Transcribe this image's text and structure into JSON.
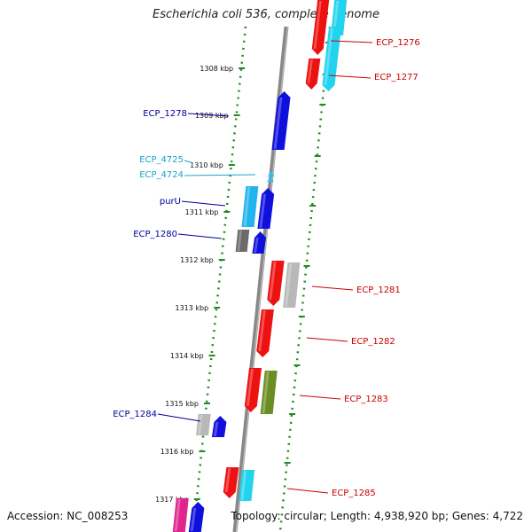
{
  "title": "Escherichia coli 536, complete genome",
  "footer": {
    "accession": "Accession: NC_008253",
    "summary": "Topology: circular; Length: 4,938,920 bp; Genes: 4,722"
  },
  "colors": {
    "red": "#ee1111",
    "cyan": "#22d3ee",
    "blue": "#1010dd",
    "lightblue": "#22b4ee",
    "gray": "#6b6b6b",
    "lightgray": "#b8b8b8",
    "olive": "#6b8e23",
    "magenta": "#e0258f",
    "dotted": "#228b22",
    "label_red": "#cc0000",
    "label_blue": "#000099",
    "label_cyan": "#1aa3c7"
  },
  "ticks": [
    "1308 kbp",
    "1309 kbp",
    "1310 kbp",
    "1311 kbp",
    "1312 kbp",
    "1313 kbp",
    "1314 kbp",
    "1315 kbp",
    "1316 kbp",
    "1317 kbp"
  ],
  "genes": [
    {
      "name": "ECP_1276",
      "side": "right",
      "color": "label_red"
    },
    {
      "name": "ECP_1277",
      "side": "right",
      "color": "label_red"
    },
    {
      "name": "ECP_1278",
      "side": "left",
      "color": "label_blue"
    },
    {
      "name": "ECP_4725",
      "side": "left",
      "color": "label_cyan"
    },
    {
      "name": "ECP_4724",
      "side": "left",
      "color": "label_cyan"
    },
    {
      "name": "purU",
      "side": "left",
      "color": "label_blue"
    },
    {
      "name": "ECP_1280",
      "side": "left",
      "color": "label_blue"
    },
    {
      "name": "ECP_1281",
      "side": "right",
      "color": "label_red"
    },
    {
      "name": "ECP_1282",
      "side": "right",
      "color": "label_red"
    },
    {
      "name": "ECP_1283",
      "side": "right",
      "color": "label_red"
    },
    {
      "name": "ECP_1284",
      "side": "left",
      "color": "label_blue"
    },
    {
      "name": "ECP_1285",
      "side": "right",
      "color": "label_red"
    }
  ]
}
